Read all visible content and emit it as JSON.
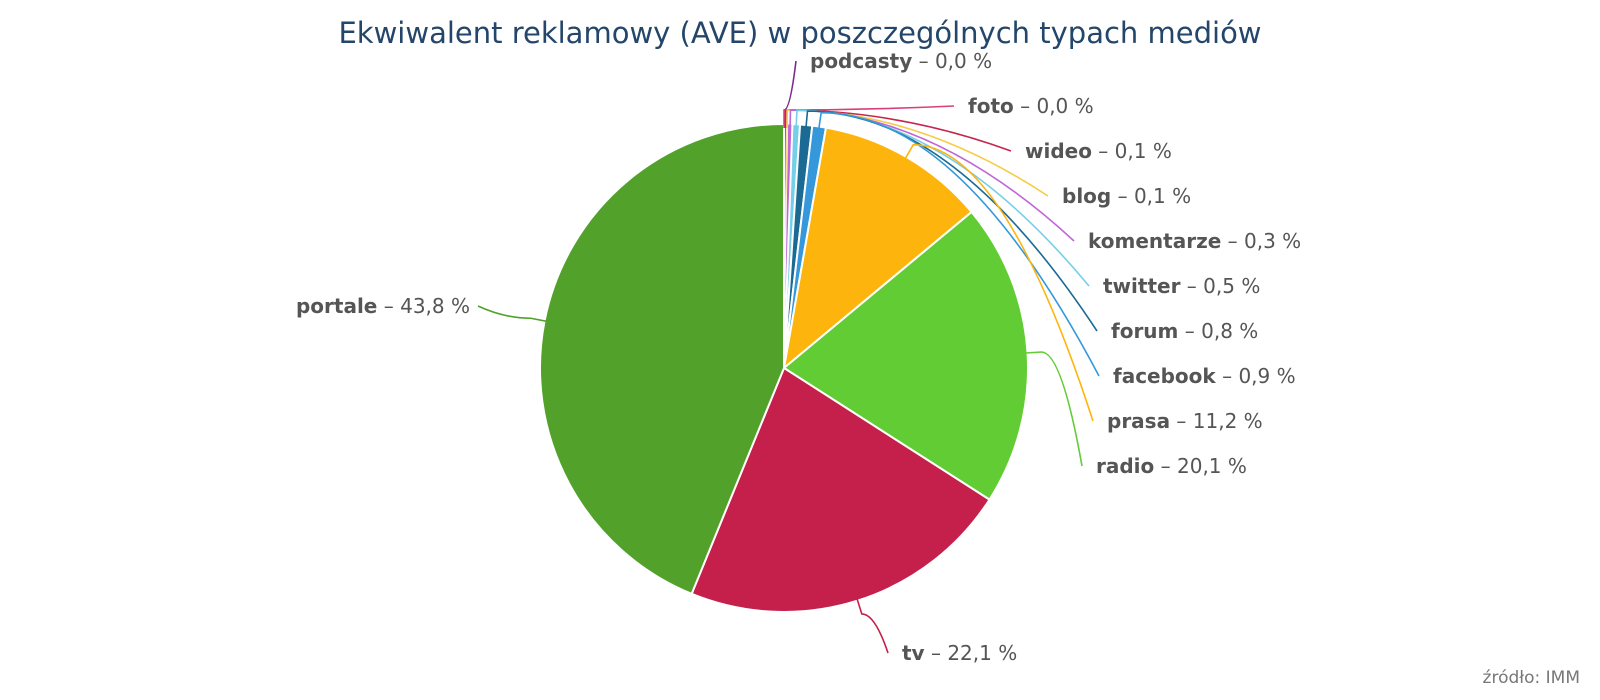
{
  "chart_data": {
    "type": "pie",
    "title": "Ekwiwalent reklamowy (AVE) w poszczególnych typach mediów",
    "value_suffix": " %",
    "label_separator": " – ",
    "source": "źródło: IMM",
    "slices": [
      {
        "name": "podcasty",
        "value": 0.02,
        "display": "0,0",
        "color": "#7b2b8f"
      },
      {
        "name": "foto",
        "value": 0.03,
        "display": "0,0",
        "color": "#d93f7a"
      },
      {
        "name": "wideo",
        "value": 0.1,
        "display": "0,1",
        "color": "#c5264e"
      },
      {
        "name": "blog",
        "value": 0.1,
        "display": "0,1",
        "color": "#f5cc4a"
      },
      {
        "name": "komentarze",
        "value": 0.3,
        "display": "0,3",
        "color": "#c067d6"
      },
      {
        "name": "twitter",
        "value": 0.5,
        "display": "0,5",
        "color": "#75cfe8"
      },
      {
        "name": "forum",
        "value": 0.8,
        "display": "0,8",
        "color": "#1a6a94"
      },
      {
        "name": "facebook",
        "value": 0.9,
        "display": "0,9",
        "color": "#3498db"
      },
      {
        "name": "prasa",
        "value": 11.2,
        "display": "11,2",
        "color": "#fdb50e"
      },
      {
        "name": "radio",
        "value": 20.1,
        "display": "20,1",
        "color": "#62cc35"
      },
      {
        "name": "tv",
        "value": 22.1,
        "display": "22,1",
        "color": "#c51f4b"
      },
      {
        "name": "portale",
        "value": 43.8,
        "display": "43,8",
        "color": "#52a12a"
      }
    ]
  }
}
